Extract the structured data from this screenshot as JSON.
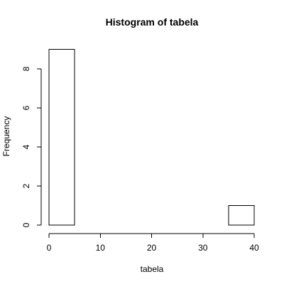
{
  "chart_data": {
    "type": "bar",
    "subtype": "histogram",
    "title": "Histogram of tabela",
    "xlabel": "tabela",
    "ylabel": "Frequency",
    "bins": [
      {
        "from": 0,
        "to": 5,
        "count": 9
      },
      {
        "from": 5,
        "to": 10,
        "count": 0
      },
      {
        "from": 10,
        "to": 15,
        "count": 0
      },
      {
        "from": 15,
        "to": 20,
        "count": 0
      },
      {
        "from": 20,
        "to": 25,
        "count": 0
      },
      {
        "from": 25,
        "to": 30,
        "count": 0
      },
      {
        "from": 30,
        "to": 35,
        "count": 0
      },
      {
        "from": 35,
        "to": 40,
        "count": 1
      }
    ],
    "xlim": [
      0,
      40
    ],
    "ylim": [
      0,
      9
    ],
    "xticks": [
      0,
      10,
      20,
      30,
      40
    ],
    "yticks": [
      0,
      2,
      4,
      6,
      8
    ],
    "bar_fill": "#ffffff",
    "bar_stroke": "#000000",
    "grid": false,
    "legend": "none"
  }
}
